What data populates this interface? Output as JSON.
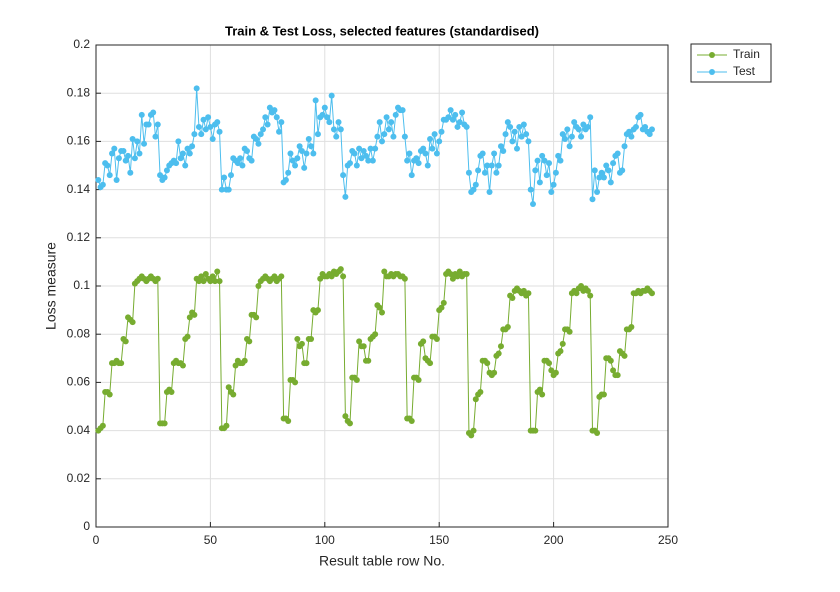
{
  "chart_data": {
    "type": "line",
    "title": "Train & Test Loss, selected features (standardised)",
    "x_label": "Result table row No.",
    "y_label": "Loss measure",
    "x": [
      1,
      2,
      3,
      4,
      5,
      6,
      7,
      8,
      9,
      10,
      11,
      12,
      13,
      14,
      15,
      16,
      17,
      18,
      19,
      20,
      21,
      22,
      23,
      24,
      25,
      26,
      27,
      28,
      29,
      30,
      31,
      32,
      33,
      34,
      35,
      36,
      37,
      38,
      39,
      40,
      41,
      42,
      43,
      44,
      45,
      46,
      47,
      48,
      49,
      50,
      51,
      52,
      53,
      54,
      55,
      56,
      57,
      58,
      59,
      60,
      61,
      62,
      63,
      64,
      65,
      66,
      67,
      68,
      69,
      70,
      71,
      72,
      73,
      74,
      75,
      76,
      77,
      78,
      79,
      80,
      81,
      82,
      83,
      84,
      85,
      86,
      87,
      88,
      89,
      90,
      91,
      92,
      93,
      94,
      95,
      96,
      97,
      98,
      99,
      100,
      101,
      102,
      103,
      104,
      105,
      106,
      107,
      108,
      109,
      110,
      111,
      112,
      113,
      114,
      115,
      116,
      117,
      118,
      119,
      120,
      121,
      122,
      123,
      124,
      125,
      126,
      127,
      128,
      129,
      130,
      131,
      132,
      133,
      134,
      135,
      136,
      137,
      138,
      139,
      140,
      141,
      142,
      143,
      144,
      145,
      146,
      147,
      148,
      149,
      150,
      151,
      152,
      153,
      154,
      155,
      156,
      157,
      158,
      159,
      160,
      161,
      162,
      163,
      164,
      165,
      166,
      167,
      168,
      169,
      170,
      171,
      172,
      173,
      174,
      175,
      176,
      177,
      178,
      179,
      180,
      181,
      182,
      183,
      184,
      185,
      186,
      187,
      188,
      189,
      190,
      191,
      192,
      193,
      194,
      195,
      196,
      197,
      198,
      199,
      200,
      201,
      202,
      203,
      204,
      205,
      206,
      207,
      208,
      209,
      210,
      211,
      212,
      213,
      214,
      215,
      216,
      217,
      218,
      219,
      220,
      221,
      222,
      223,
      224,
      225,
      226,
      227,
      228,
      229,
      230,
      231,
      232,
      233,
      234,
      235,
      236,
      237,
      238,
      239,
      240,
      241,
      242,
      243
    ],
    "series": [
      {
        "name": "Train",
        "color": "#77ac30",
        "values": [
          0.04,
          0.041,
          0.042,
          0.056,
          0.056,
          0.055,
          0.068,
          0.068,
          0.069,
          0.068,
          0.068,
          0.078,
          0.077,
          0.087,
          0.086,
          0.085,
          0.101,
          0.102,
          0.103,
          0.104,
          0.103,
          0.102,
          0.103,
          0.104,
          0.103,
          0.102,
          0.103,
          0.043,
          0.043,
          0.043,
          0.056,
          0.057,
          0.056,
          0.068,
          0.069,
          0.068,
          0.068,
          0.067,
          0.078,
          0.079,
          0.087,
          0.089,
          0.088,
          0.103,
          0.102,
          0.104,
          0.102,
          0.105,
          0.103,
          0.102,
          0.104,
          0.102,
          0.106,
          0.102,
          0.041,
          0.041,
          0.042,
          0.058,
          0.056,
          0.055,
          0.067,
          0.069,
          0.068,
          0.068,
          0.069,
          0.078,
          0.077,
          0.088,
          0.088,
          0.087,
          0.1,
          0.102,
          0.103,
          0.104,
          0.103,
          0.102,
          0.103,
          0.104,
          0.102,
          0.103,
          0.104,
          0.045,
          0.045,
          0.044,
          0.061,
          0.061,
          0.06,
          0.078,
          0.075,
          0.076,
          0.068,
          0.068,
          0.078,
          0.078,
          0.09,
          0.089,
          0.09,
          0.103,
          0.105,
          0.104,
          0.104,
          0.105,
          0.104,
          0.106,
          0.105,
          0.106,
          0.107,
          0.104,
          0.046,
          0.044,
          0.043,
          0.062,
          0.062,
          0.061,
          0.077,
          0.075,
          0.075,
          0.069,
          0.069,
          0.078,
          0.079,
          0.08,
          0.092,
          0.091,
          0.089,
          0.106,
          0.104,
          0.104,
          0.105,
          0.104,
          0.105,
          0.105,
          0.104,
          0.104,
          0.103,
          0.045,
          0.045,
          0.044,
          0.062,
          0.062,
          0.061,
          0.076,
          0.077,
          0.07,
          0.069,
          0.068,
          0.079,
          0.079,
          0.078,
          0.09,
          0.091,
          0.093,
          0.105,
          0.106,
          0.105,
          0.103,
          0.105,
          0.104,
          0.106,
          0.104,
          0.105,
          0.105,
          0.039,
          0.038,
          0.04,
          0.053,
          0.055,
          0.056,
          0.069,
          0.069,
          0.068,
          0.064,
          0.063,
          0.064,
          0.071,
          0.072,
          0.075,
          0.082,
          0.082,
          0.083,
          0.096,
          0.095,
          0.098,
          0.099,
          0.098,
          0.097,
          0.098,
          0.096,
          0.097,
          0.04,
          0.04,
          0.04,
          0.056,
          0.057,
          0.055,
          0.069,
          0.069,
          0.068,
          0.065,
          0.063,
          0.064,
          0.072,
          0.073,
          0.076,
          0.082,
          0.082,
          0.081,
          0.097,
          0.098,
          0.097,
          0.099,
          0.1,
          0.098,
          0.099,
          0.098,
          0.096,
          0.04,
          0.04,
          0.039,
          0.054,
          0.055,
          0.055,
          0.07,
          0.07,
          0.069,
          0.065,
          0.063,
          0.063,
          0.073,
          0.072,
          0.071,
          0.082,
          0.082,
          0.083,
          0.097,
          0.097,
          0.098,
          0.097,
          0.098,
          0.098,
          0.099,
          0.098,
          0.097
        ]
      },
      {
        "name": "Test",
        "color": "#4dbeee",
        "values": [
          0.144,
          0.141,
          0.142,
          0.151,
          0.15,
          0.146,
          0.155,
          0.157,
          0.144,
          0.153,
          0.156,
          0.156,
          0.152,
          0.154,
          0.147,
          0.161,
          0.153,
          0.16,
          0.155,
          0.171,
          0.159,
          0.167,
          0.167,
          0.171,
          0.172,
          0.162,
          0.167,
          0.146,
          0.144,
          0.145,
          0.148,
          0.15,
          0.151,
          0.152,
          0.151,
          0.16,
          0.153,
          0.155,
          0.15,
          0.157,
          0.155,
          0.158,
          0.163,
          0.182,
          0.166,
          0.163,
          0.169,
          0.165,
          0.17,
          0.166,
          0.161,
          0.167,
          0.168,
          0.164,
          0.14,
          0.145,
          0.14,
          0.14,
          0.146,
          0.153,
          0.152,
          0.151,
          0.153,
          0.15,
          0.157,
          0.156,
          0.153,
          0.152,
          0.162,
          0.161,
          0.159,
          0.163,
          0.165,
          0.17,
          0.167,
          0.174,
          0.172,
          0.173,
          0.17,
          0.164,
          0.168,
          0.143,
          0.144,
          0.147,
          0.155,
          0.152,
          0.15,
          0.153,
          0.158,
          0.156,
          0.149,
          0.155,
          0.161,
          0.158,
          0.155,
          0.177,
          0.163,
          0.17,
          0.171,
          0.174,
          0.17,
          0.168,
          0.179,
          0.165,
          0.162,
          0.168,
          0.165,
          0.146,
          0.137,
          0.15,
          0.151,
          0.156,
          0.155,
          0.15,
          0.157,
          0.153,
          0.156,
          0.154,
          0.152,
          0.157,
          0.152,
          0.157,
          0.162,
          0.168,
          0.16,
          0.163,
          0.17,
          0.165,
          0.168,
          0.162,
          0.171,
          0.174,
          0.173,
          0.173,
          0.162,
          0.152,
          0.155,
          0.146,
          0.152,
          0.153,
          0.151,
          0.156,
          0.157,
          0.155,
          0.15,
          0.161,
          0.157,
          0.163,
          0.155,
          0.16,
          0.164,
          0.169,
          0.169,
          0.17,
          0.173,
          0.169,
          0.171,
          0.166,
          0.168,
          0.172,
          0.167,
          0.166,
          0.147,
          0.139,
          0.14,
          0.142,
          0.148,
          0.154,
          0.155,
          0.147,
          0.15,
          0.139,
          0.15,
          0.155,
          0.147,
          0.15,
          0.158,
          0.156,
          0.163,
          0.168,
          0.166,
          0.16,
          0.164,
          0.157,
          0.166,
          0.162,
          0.167,
          0.163,
          0.16,
          0.14,
          0.134,
          0.148,
          0.152,
          0.143,
          0.154,
          0.152,
          0.146,
          0.151,
          0.139,
          0.142,
          0.147,
          0.154,
          0.152,
          0.163,
          0.161,
          0.165,
          0.158,
          0.162,
          0.168,
          0.166,
          0.165,
          0.162,
          0.167,
          0.165,
          0.166,
          0.17,
          0.136,
          0.148,
          0.139,
          0.145,
          0.147,
          0.145,
          0.15,
          0.148,
          0.143,
          0.151,
          0.154,
          0.155,
          0.147,
          0.148,
          0.158,
          0.163,
          0.164,
          0.162,
          0.165,
          0.166,
          0.17,
          0.171,
          0.165,
          0.166,
          0.164,
          0.163,
          0.165
        ]
      }
    ],
    "xlim": [
      0,
      250
    ],
    "xticks": [
      0,
      50,
      100,
      150,
      200,
      250
    ],
    "ylim": [
      0,
      0.2
    ],
    "yticks": [
      0,
      0.02,
      0.04,
      0.06,
      0.08,
      0.1,
      0.12,
      0.14,
      0.16,
      0.18,
      0.2
    ],
    "grid": true,
    "legend": "outside-top-right"
  }
}
